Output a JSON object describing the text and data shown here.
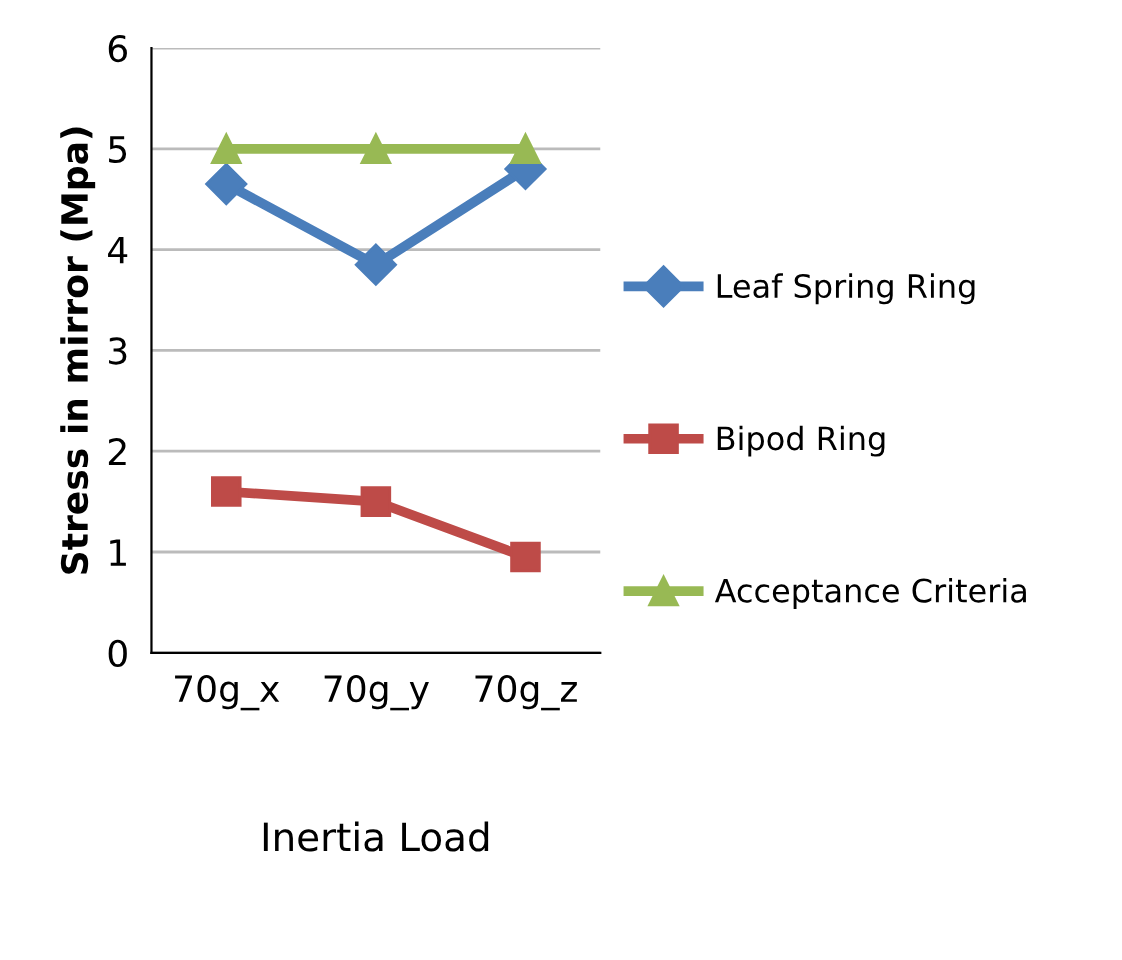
{
  "chart_data": {
    "type": "line",
    "xlabel": "Inertia Load",
    "ylabel": "Stress in mirror (Mpa)",
    "categories": [
      "70g_x",
      "70g_y",
      "70g_z"
    ],
    "series": [
      {
        "name": "Leaf Spring Ring",
        "color": "#4a7ebb",
        "values": [
          4.65,
          3.85,
          4.8
        ],
        "marker": "diamond"
      },
      {
        "name": "Bipod Ring",
        "color": "#be4b48",
        "values": [
          1.6,
          1.5,
          0.95
        ],
        "marker": "square"
      },
      {
        "name": "Acceptance Criteria",
        "color": "#98b954",
        "values": [
          5,
          5,
          5
        ],
        "marker": "triangle"
      }
    ],
    "ylim": [
      0,
      6
    ],
    "yticks": [
      0,
      1,
      2,
      3,
      4,
      5,
      6
    ],
    "grid": "y",
    "legend": "right"
  }
}
